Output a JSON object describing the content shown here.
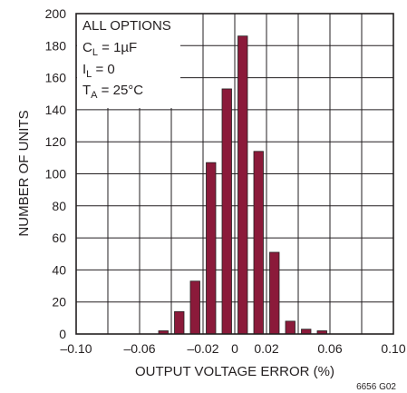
{
  "chart_data": {
    "type": "bar",
    "xlabel": "OUTPUT VOLTAGE ERROR (%)",
    "ylabel": "NUMBER OF UNITS",
    "xlim": [
      -0.1,
      0.1
    ],
    "ylim": [
      0,
      200
    ],
    "x_ticks": [
      -0.1,
      -0.06,
      -0.02,
      0,
      0.02,
      0.06,
      0.1
    ],
    "x_tick_labels": [
      "–0.10",
      "–0.06",
      "–0.02",
      "0",
      "0.02",
      "0.06",
      "0.10"
    ],
    "y_ticks": [
      0,
      20,
      40,
      60,
      80,
      100,
      120,
      140,
      160,
      180,
      200
    ],
    "y_tick_labels": [
      "0",
      "20",
      "40",
      "60",
      "80",
      "100",
      "120",
      "140",
      "160",
      "180",
      "200"
    ],
    "grid": true,
    "bar_color": "#8b1a3a",
    "x": [
      -0.045,
      -0.035,
      -0.025,
      -0.015,
      -0.005,
      0.005,
      0.015,
      0.025,
      0.035,
      0.045,
      0.055
    ],
    "values": [
      2,
      14,
      33,
      107,
      153,
      186,
      114,
      51,
      8,
      3,
      2
    ],
    "conditions": {
      "line1": "ALL OPTIONS",
      "cl_sym": "C",
      "cl_sub": "L",
      "cl_rest": " = 1µF",
      "il_sym": "I",
      "il_sub": "L",
      "il_rest": " = 0",
      "ta_sym": "T",
      "ta_sub": "A",
      "ta_rest": " = 25°C"
    },
    "figure_id": "6656 G02"
  }
}
